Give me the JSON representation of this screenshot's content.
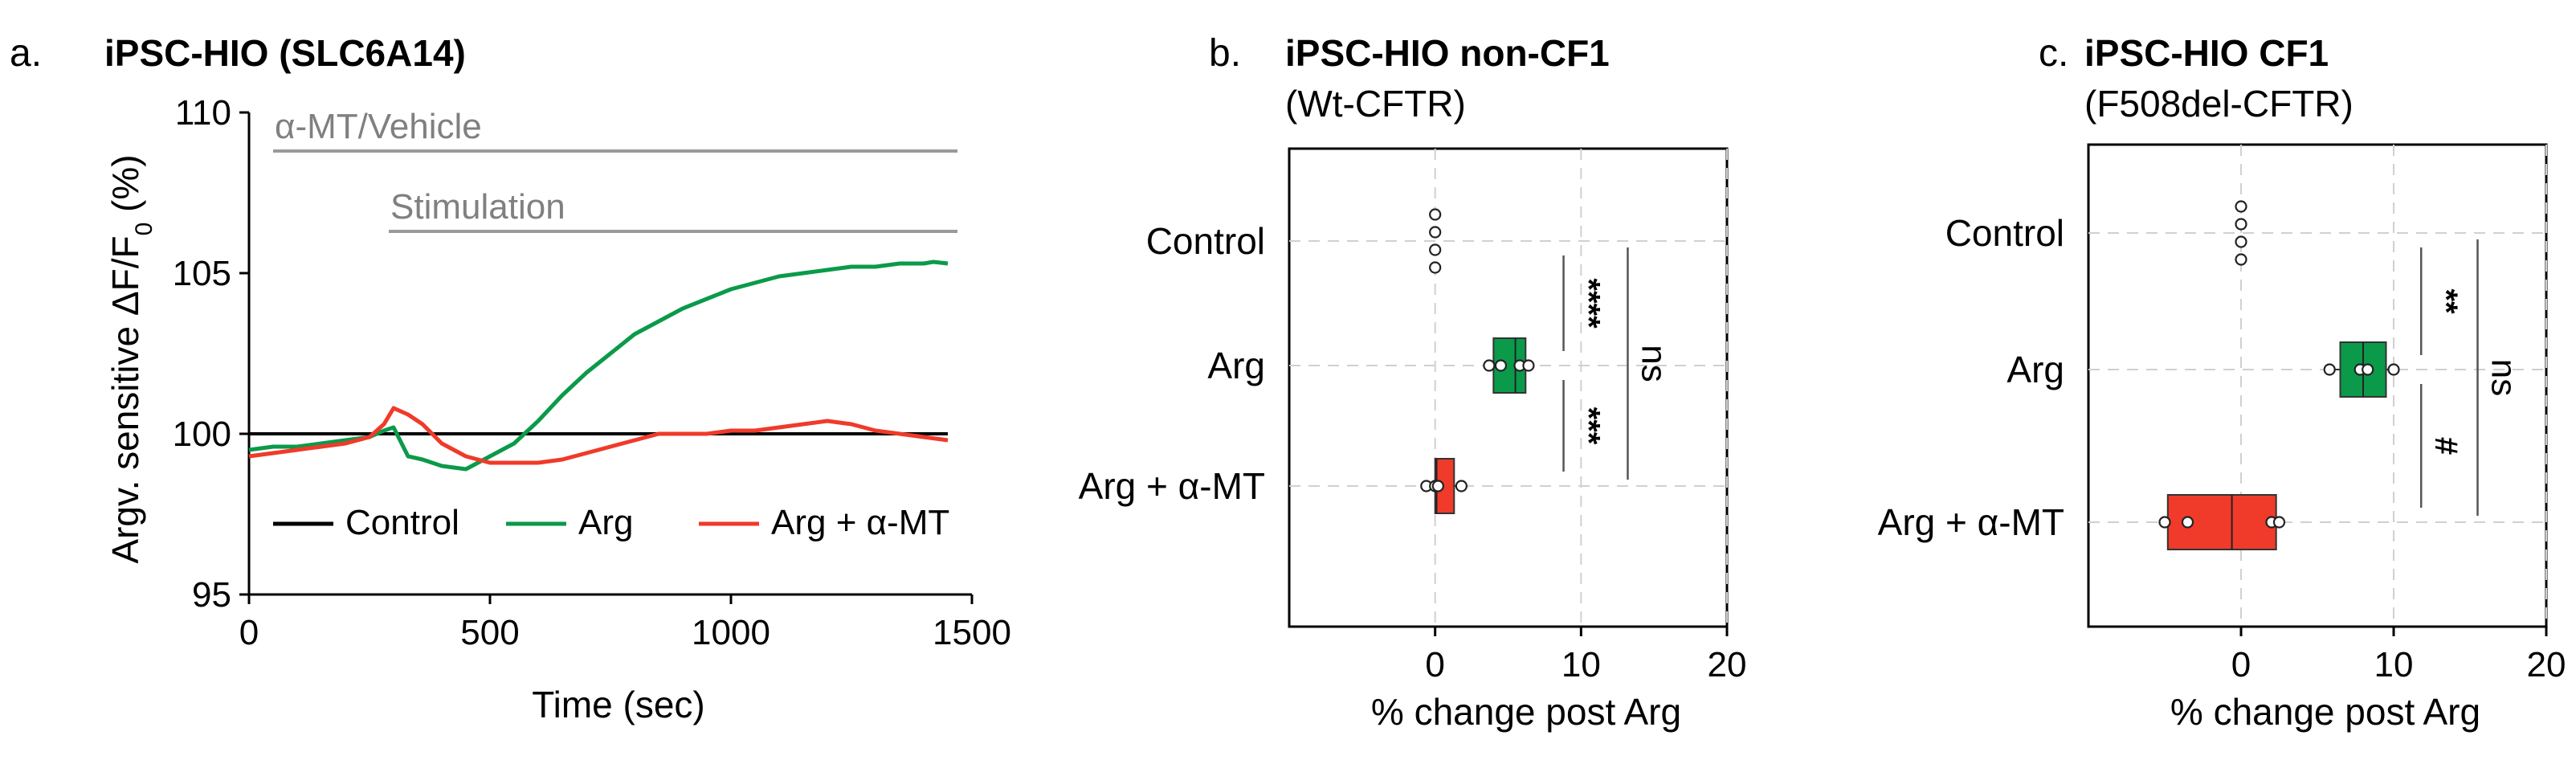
{
  "colors": {
    "control": "#000000",
    "arg": "#0a9a4a",
    "argmt": "#f03a2a",
    "bracket": "#555555",
    "annotation": "#9a9a9a",
    "grid": "#d0d0d0"
  },
  "chart_data": [
    {
      "id": "a",
      "panel_label": "a.",
      "type": "line",
      "title": "iPSC-HIO (SLC6A14)",
      "xlabel": "Time (sec)",
      "ylabel_main": "Argv. sensitive ΔF/F",
      "ylabel_sub": "0",
      "ylabel_tail": " (%)",
      "xlim": [
        0,
        1500
      ],
      "ylim": [
        95,
        110
      ],
      "xticks": [
        0,
        500,
        1000,
        1500
      ],
      "yticks": [
        95,
        100,
        105,
        110
      ],
      "annotations": [
        {
          "text": "α-MT/Vehicle",
          "x_start": 50,
          "x_end": 1470,
          "y": 108.8
        },
        {
          "text": "Stimulation",
          "x_start": 290,
          "x_end": 1470,
          "y": 106.3
        }
      ],
      "legend": {
        "position": "bottom",
        "entries": [
          "Control",
          "Arg",
          "Arg + α-MT"
        ]
      },
      "series": [
        {
          "name": "Control",
          "color_key": "control",
          "x": [
            0,
            1450
          ],
          "y": [
            100,
            100
          ]
        },
        {
          "name": "Arg",
          "color_key": "arg",
          "x": [
            0,
            50,
            100,
            150,
            200,
            250,
            280,
            300,
            330,
            360,
            400,
            450,
            500,
            550,
            600,
            650,
            700,
            750,
            800,
            850,
            900,
            950,
            1000,
            1050,
            1100,
            1150,
            1200,
            1250,
            1300,
            1350,
            1400,
            1420,
            1450
          ],
          "y": [
            99.5,
            99.6,
            99.6,
            99.7,
            99.8,
            99.9,
            100.1,
            100.2,
            99.3,
            99.2,
            99.0,
            98.9,
            99.3,
            99.7,
            100.4,
            101.2,
            101.9,
            102.5,
            103.1,
            103.5,
            103.9,
            104.2,
            104.5,
            104.7,
            104.9,
            105.0,
            105.1,
            105.2,
            105.2,
            105.3,
            105.3,
            105.35,
            105.3
          ]
        },
        {
          "name": "Arg + α-MT",
          "color_key": "argmt",
          "x": [
            0,
            50,
            100,
            150,
            200,
            250,
            280,
            300,
            330,
            360,
            400,
            450,
            500,
            550,
            600,
            650,
            700,
            750,
            800,
            850,
            900,
            950,
            1000,
            1050,
            1100,
            1150,
            1200,
            1250,
            1300,
            1350,
            1400,
            1450
          ],
          "y": [
            99.3,
            99.4,
            99.5,
            99.6,
            99.7,
            99.9,
            100.3,
            100.8,
            100.6,
            100.3,
            99.7,
            99.3,
            99.1,
            99.1,
            99.1,
            99.2,
            99.4,
            99.6,
            99.8,
            100.0,
            100.0,
            100.0,
            100.1,
            100.1,
            100.2,
            100.3,
            100.4,
            100.3,
            100.1,
            100.0,
            99.9,
            99.8
          ]
        }
      ]
    },
    {
      "id": "b",
      "panel_label": "b.",
      "type": "box",
      "title": "iPSC-HIO non-CF1",
      "subtitle": "(Wt-CFTR)",
      "xlabel": "% change post Arg",
      "xlim": [
        -10,
        20
      ],
      "xticks": [
        0,
        10,
        20
      ],
      "categories": [
        "Control",
        "Arg",
        "Arg + α-MT"
      ],
      "boxes": [
        {
          "category": "Control",
          "color_key": "none",
          "q1": 0,
          "median": 0,
          "q3": 0,
          "whisker_low": 0,
          "whisker_high": 0,
          "points": [
            0,
            0,
            0,
            0
          ]
        },
        {
          "category": "Arg",
          "color_key": "arg",
          "q1": 4.0,
          "median": 5.5,
          "q3": 6.2,
          "whisker_low": 3.5,
          "whisker_high": 6.8,
          "points": [
            3.7,
            4.5,
            5.8,
            6.4
          ]
        },
        {
          "category": "Arg + α-MT",
          "color_key": "argmt",
          "q1": 0.0,
          "median": 0.1,
          "q3": 1.3,
          "whisker_low": -0.6,
          "whisker_high": 2.2,
          "points": [
            -0.6,
            0.0,
            0.2,
            1.8
          ]
        }
      ],
      "brackets": [
        {
          "label": "****",
          "from": "Control",
          "to": "Arg",
          "x": 8.8
        },
        {
          "label": "***",
          "from": "Arg",
          "to": "Arg + α-MT",
          "x": 8.8
        },
        {
          "label": "ns",
          "from": "Control",
          "to": "Arg + α-MT",
          "x": 13.2
        }
      ]
    },
    {
      "id": "c",
      "panel_label": "c.",
      "type": "box",
      "title": "iPSC-HIO CF1",
      "subtitle": "(F508del-CFTR)",
      "xlabel": "% change post Arg",
      "xlim": [
        -10,
        20
      ],
      "xticks": [
        0,
        10,
        20
      ],
      "categories": [
        "Control",
        "Arg",
        "Arg + α-MT"
      ],
      "boxes": [
        {
          "category": "Control",
          "color_key": "none",
          "q1": 0,
          "median": 0,
          "q3": 0,
          "whisker_low": 0,
          "whisker_high": 0,
          "points": [
            0,
            0,
            0,
            0
          ]
        },
        {
          "category": "Arg",
          "color_key": "arg",
          "q1": 6.5,
          "median": 8.0,
          "q3": 9.5,
          "whisker_low": 5.8,
          "whisker_high": 10.2,
          "points": [
            5.8,
            7.8,
            8.3,
            10.0
          ]
        },
        {
          "category": "Arg + α-MT",
          "color_key": "argmt",
          "q1": -4.8,
          "median": -0.6,
          "q3": 2.3,
          "whisker_low": -5.2,
          "whisker_high": 2.7,
          "points": [
            -5.0,
            -3.5,
            2.0,
            2.5
          ]
        }
      ],
      "brackets": [
        {
          "label": "**",
          "from": "Control",
          "to": "Arg",
          "x": 11.8
        },
        {
          "label": "#",
          "from": "Arg",
          "to": "Arg + α-MT",
          "x": 11.8
        },
        {
          "label": "ns",
          "from": "Control",
          "to": "Arg + α-MT",
          "x": 15.5
        }
      ]
    }
  ]
}
